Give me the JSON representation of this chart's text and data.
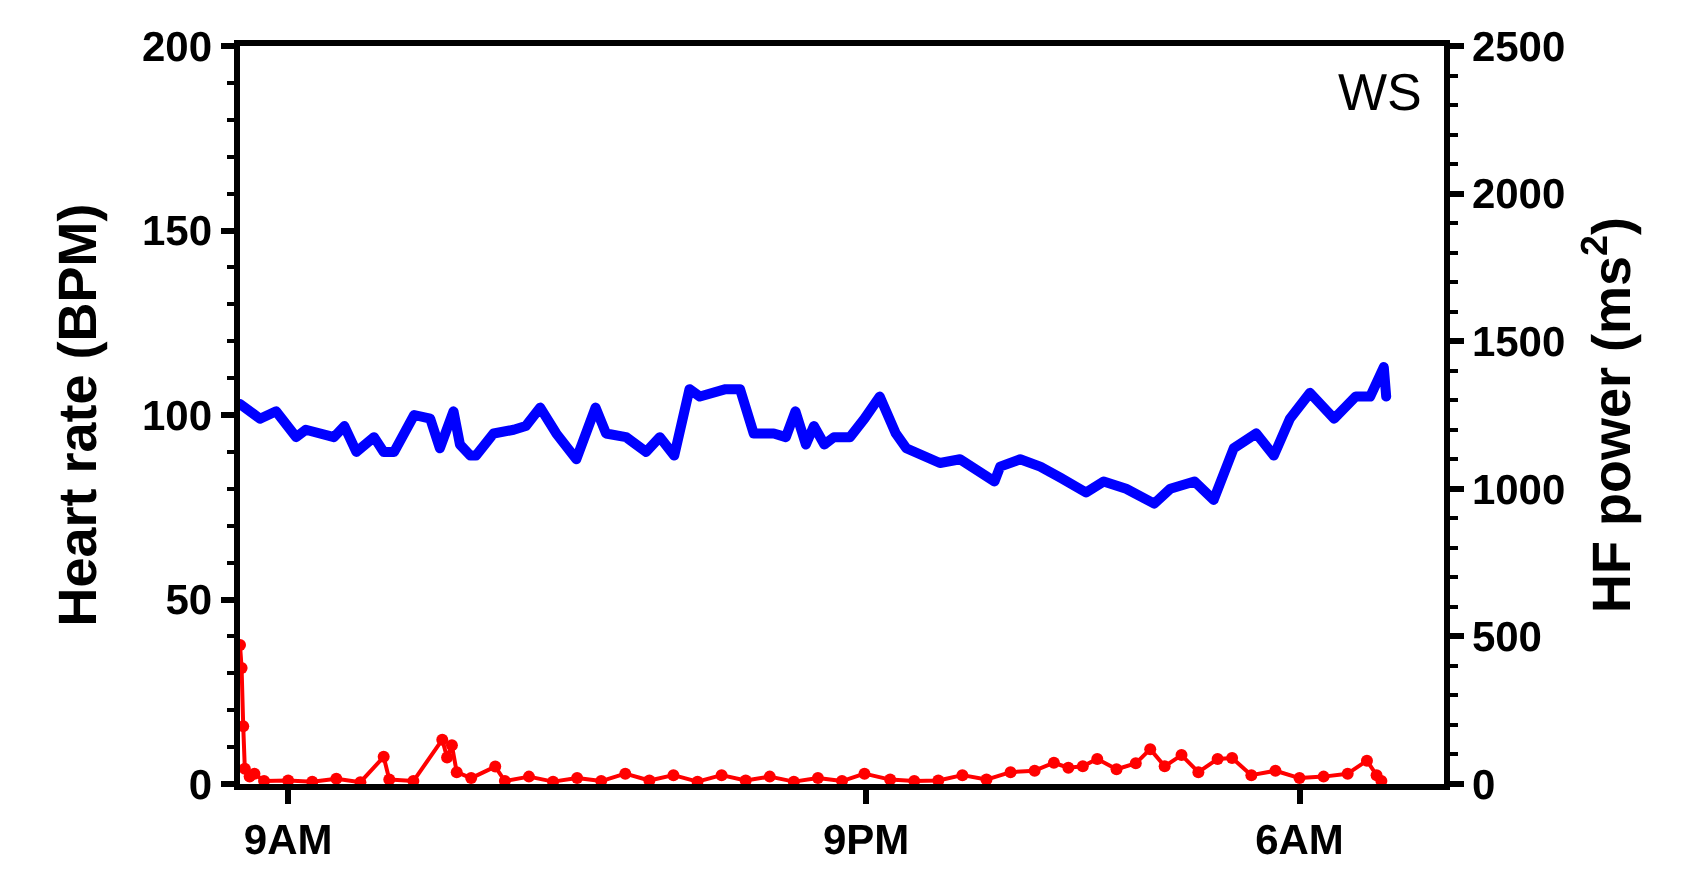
{
  "chart_data": {
    "type": "line",
    "ylabel": "Heart rate (BPM)",
    "y2label": "HF power (ms$^{2}$)",
    "annotations": [
      "WS"
    ],
    "xlim": [
      "--01-01T08:00",
      "--01-02T09:00"
    ],
    "xticks": [
      {
        "value": "--01-01T09:00",
        "label": "9AM"
      },
      {
        "value": "--01-01T21:00",
        "label": "9PM"
      },
      {
        "value": "--01-02T06:00",
        "label": "6AM"
      }
    ],
    "ylim": [
      0,
      200
    ],
    "yticks": [
      0,
      50,
      100,
      150,
      200
    ],
    "y2lim": [
      0,
      2500
    ],
    "y2ticks": [
      0,
      500,
      1000,
      1500,
      2000,
      2500
    ],
    "series": [
      {
        "color": "#0000ff",
        "marker": "none",
        "x": [
          "--01-01T08:00",
          "--01-01T08:25",
          "--01-01T08:45",
          "--01-01T09:10",
          "--01-01T09:22",
          "--01-01T09:57",
          "--01-01T10:10",
          "--01-01T10:25",
          "--01-01T10:47",
          "--01-01T10:59",
          "--01-01T11:12",
          "--01-01T11:37",
          "--01-01T11:57",
          "--01-01T12:09",
          "--01-01T12:26",
          "--01-01T12:34",
          "--01-01T12:47",
          "--01-01T12:54",
          "--01-01T13:16",
          "--01-01T13:41",
          "--01-01T13:56",
          "--01-01T14:14",
          "--01-01T14:34",
          "--01-01T14:59",
          "--01-01T15:23",
          "--01-01T15:36",
          "--01-01T16:01",
          "--01-01T16:26",
          "--01-01T16:43",
          "--01-01T17:01",
          "--01-01T17:20",
          "--01-01T17:33",
          "--01-01T18:05",
          "--01-01T18:23",
          "--01-01T18:40",
          "--01-01T19:05",
          "--01-01T19:20",
          "--01-01T19:32",
          "--01-01T19:45",
          "--01-01T19:55",
          "--01-01T20:08",
          "--01-01T20:20",
          "--01-01T20:40",
          "--01-01T20:58",
          "--01-01T21:17",
          "--01-01T21:37",
          "--01-01T21:50",
          "--01-01T22:32",
          "--01-01T22:57",
          "--01-01T23:40",
          "--01-01T23:47",
          "--01-02T00:12",
          "--01-02T00:37",
          "--01-02T01:02",
          "--01-02T01:34",
          "--01-02T01:56",
          "--01-02T02:24",
          "--01-02T02:59",
          "--01-02T03:19",
          "--01-02T03:49",
          "--01-02T04:13",
          "--01-02T04:38",
          "--01-02T05:06",
          "--01-02T05:28",
          "--01-02T05:48",
          "--01-02T06:13",
          "--01-02T06:43",
          "--01-02T07:10",
          "--01-02T07:28",
          "--01-02T07:45",
          "--01-02T07:48"
        ],
        "values": [
          103,
          99,
          101,
          94,
          96,
          94,
          97,
          90,
          94,
          90,
          90,
          100,
          99,
          91,
          101,
          92,
          89,
          89,
          95,
          96,
          97,
          102,
          95,
          88,
          102,
          95,
          94,
          90,
          94,
          89,
          107,
          105,
          107,
          107,
          95,
          95,
          94,
          101,
          92,
          97,
          92,
          94,
          94,
          99,
          105,
          95,
          91,
          87,
          88,
          82,
          86,
          88,
          86,
          83,
          79,
          82,
          80,
          76,
          80,
          82,
          77,
          91,
          95,
          89,
          99,
          106,
          99,
          105,
          105,
          113,
          105
        ]
      },
      {
        "color": "#ff0000",
        "marker": "circle",
        "axis": "y2",
        "x": [
          "--01-01T08:00",
          "--01-01T08:02",
          "--01-01T08:04",
          "--01-01T08:06",
          "--01-01T08:12",
          "--01-01T08:18",
          "--01-01T08:30",
          "--01-01T09:00",
          "--01-01T09:30",
          "--01-01T10:00",
          "--01-01T10:30",
          "--01-01T10:59",
          "--01-01T11:06",
          "--01-01T11:36",
          "--01-01T12:12",
          "--01-01T12:18",
          "--01-01T12:24",
          "--01-01T12:30",
          "--01-01T12:48",
          "--01-01T13:18",
          "--01-01T13:30",
          "--01-01T14:00",
          "--01-01T14:30",
          "--01-01T15:00",
          "--01-01T15:30",
          "--01-01T16:00",
          "--01-01T16:30",
          "--01-01T17:00",
          "--01-01T17:30",
          "--01-01T18:00",
          "--01-01T18:30",
          "--01-01T19:00",
          "--01-01T19:30",
          "--01-01T20:00",
          "--01-01T20:30",
          "--01-01T20:58",
          "--01-01T21:30",
          "--01-01T22:00",
          "--01-01T22:30",
          "--01-01T23:00",
          "--01-01T23:30",
          "--01-02T00:00",
          "--01-02T00:30",
          "--01-02T00:54",
          "--01-02T01:12",
          "--01-02T01:30",
          "--01-02T01:48",
          "--01-02T02:12",
          "--01-02T02:36",
          "--01-02T02:54",
          "--01-02T03:12",
          "--01-02T03:33",
          "--01-02T03:54",
          "--01-02T04:18",
          "--01-02T04:36",
          "--01-02T05:00",
          "--01-02T05:30",
          "--01-02T06:00",
          "--01-02T06:30",
          "--01-02T07:00",
          "--01-02T07:24",
          "--01-02T07:36",
          "--01-02T07:42"
        ],
        "values": [
          471,
          393,
          196,
          52,
          25,
          35,
          10,
          12,
          8,
          18,
          6,
          92,
          15,
          10,
          150,
          90,
          131,
          40,
          20,
          59,
          10,
          25,
          8,
          20,
          10,
          35,
          12,
          30,
          8,
          30,
          12,
          25,
          8,
          20,
          10,
          35,
          15,
          10,
          12,
          30,
          15,
          40,
          45,
          72,
          55,
          60,
          85,
          50,
          70,
          118,
          60,
          98,
          40,
          85,
          88,
          30,
          45,
          20,
          25,
          35,
          79,
          30,
          10
        ]
      }
    ]
  }
}
